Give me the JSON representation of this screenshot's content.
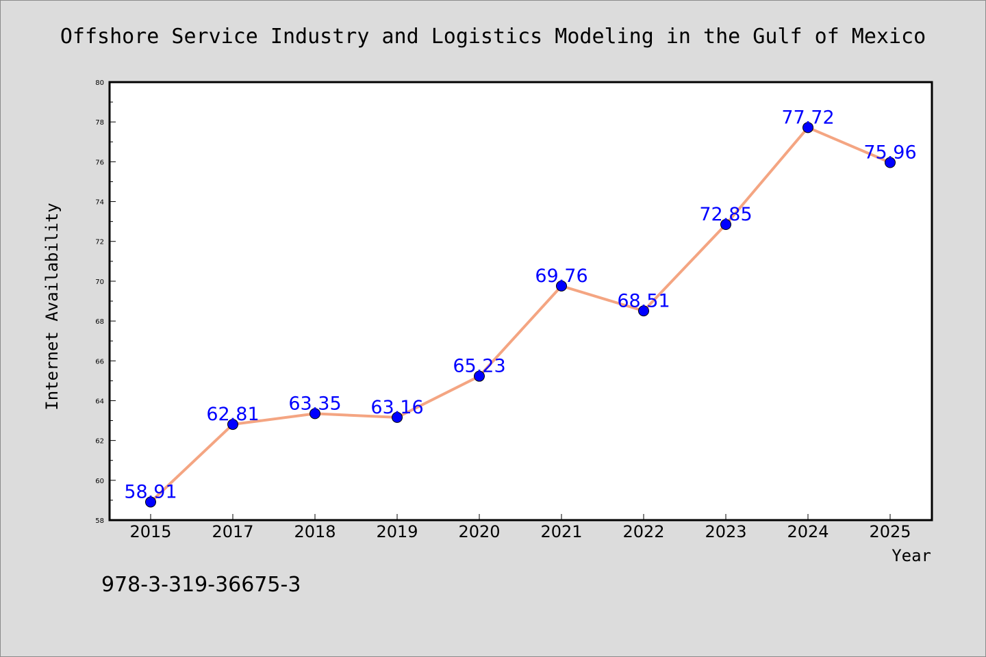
{
  "chart_data": {
    "type": "line",
    "title": "Offshore Service Industry and Logistics Modeling in the Gulf of Mexico",
    "xlabel": "Year",
    "ylabel": "Internet Availability",
    "categories": [
      "2015",
      "2017",
      "2018",
      "2019",
      "2020",
      "2021",
      "2022",
      "2023",
      "2024",
      "2025"
    ],
    "series": [
      {
        "values": [
          58.91,
          62.81,
          63.35,
          63.16,
          65.23,
          69.76,
          68.51,
          72.85,
          77.72,
          75.96
        ],
        "labels": [
          "58.91",
          "62.81",
          "63.35",
          "63.16",
          "65.23",
          "69.76",
          "68.51",
          "72.85",
          "77.72",
          "75.96"
        ]
      }
    ],
    "ylim": [
      58,
      80
    ],
    "yticks": [
      "58",
      "60",
      "62",
      "64",
      "66",
      "68",
      "70",
      "72",
      "74",
      "76",
      "78",
      "80"
    ],
    "grid": false,
    "legend": "none",
    "colors": {
      "line": "#f4a582",
      "marker": "#0000ff",
      "data_label": "#0000ff",
      "axes": "#000000",
      "plot_background": "#ffffff",
      "page_background": "#dcdcdc"
    }
  },
  "annotation": {
    "isbn": "978-3-319-36675-3"
  }
}
